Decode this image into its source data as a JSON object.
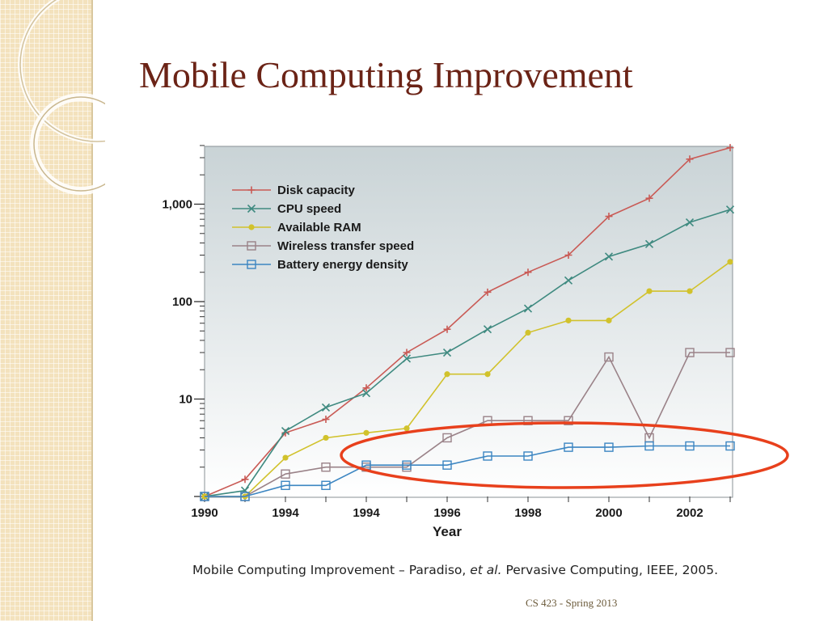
{
  "slide": {
    "title": "Mobile Computing Improvement",
    "footer": "CS 423 - Spring 2013",
    "caption": {
      "part1": "Mobile Computing Improvement – ",
      "part2": " Paradiso, ",
      "part3": "et al.",
      "part4": " Pervasive  Computing, IEEE, 2005."
    },
    "highlight": {
      "shape": "ellipse",
      "color": "#e8401c",
      "around_series": "Battery energy density"
    }
  },
  "colors": {
    "title": "#6b2316",
    "strip": "#f3e2bd",
    "plot_bg_top": "#c9d3d6",
    "plot_bg_bottom": "#ffffff"
  },
  "chart_data": {
    "type": "line",
    "xlabel": "Year",
    "x_tick_labels": [
      "1990",
      "1994",
      "1994",
      "1996",
      "1998",
      "2000",
      "2002"
    ],
    "y_scale": "log",
    "ylim": [
      1,
      4000
    ],
    "y_tick_labels": [
      {
        "value": 10,
        "label": "10"
      },
      {
        "value": 100,
        "label": "100"
      },
      {
        "value": 1000,
        "label": "1,000"
      }
    ],
    "grid": false,
    "legend": "top-left",
    "x": [
      1990,
      1991,
      1992,
      1993,
      1994,
      1995,
      1996,
      1997,
      1998,
      1999,
      2000,
      2001,
      2002,
      2003
    ],
    "series": [
      {
        "name": "Disk capacity",
        "marker": "plus",
        "color": "#c95a55",
        "values": [
          1,
          1.5,
          4.5,
          6.2,
          13,
          30,
          52,
          125,
          200,
          300,
          750,
          1150,
          2900,
          3800
        ]
      },
      {
        "name": "CPU speed",
        "marker": "x",
        "color": "#3f8a80",
        "values": [
          1,
          1.15,
          4.7,
          8.2,
          11.5,
          26,
          30,
          52,
          85,
          165,
          290,
          390,
          650,
          880
        ]
      },
      {
        "name": "Available RAM",
        "marker": "dot",
        "color": "#d1c22c",
        "values": [
          1,
          1,
          2.5,
          4,
          4.5,
          5,
          18,
          18,
          48,
          64,
          64,
          128,
          128,
          256
        ]
      },
      {
        "name": "Wireless transfer speed",
        "marker": "square",
        "color": "#9a8288",
        "values": [
          1,
          1,
          1.7,
          2,
          2,
          2,
          4,
          6,
          6,
          6,
          27,
          4,
          30,
          30
        ]
      },
      {
        "name": "Battery energy density",
        "marker": "square",
        "color": "#3c86c2",
        "values": [
          1,
          1,
          1.3,
          1.3,
          2.1,
          2.1,
          2.1,
          2.6,
          2.6,
          3.2,
          3.2,
          3.3,
          3.3,
          3.3
        ]
      }
    ]
  }
}
